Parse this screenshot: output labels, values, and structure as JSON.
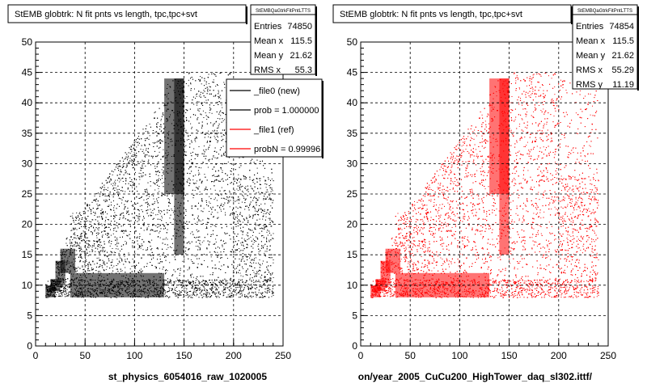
{
  "chart_data": [
    {
      "type": "scatter",
      "panel": "left",
      "title": "StEMB globtrk: N fit pnts vs length, tpc,tpc+svt",
      "xlabel": "st_physics_6054016_raw_1020005",
      "ylabel": "",
      "xlim": [
        0,
        250
      ],
      "ylim": [
        0,
        50
      ],
      "x_ticks": [
        "0",
        "50",
        "100",
        "150",
        "200",
        "250"
      ],
      "y_ticks": [
        "0",
        "5",
        "10",
        "15",
        "20",
        "25",
        "30",
        "35",
        "40",
        "45",
        "50"
      ],
      "grid": true,
      "marker_color": "#000000",
      "stats": {
        "header": "StEMBQaGtrkFitPntLTTS",
        "rows": [
          {
            "label": "Entries",
            "value": "74850"
          },
          {
            "label": "Mean x",
            "value": "115.5"
          },
          {
            "label": "Mean y",
            "value": "21.62"
          },
          {
            "label": "RMS x",
            "value": "55.3"
          }
        ]
      },
      "legend": {
        "placement": "top-right",
        "entries": [
          {
            "label": "_file0 (new)",
            "color": "#000000"
          },
          {
            "label": "prob = 1.000000",
            "color": "#000000"
          },
          {
            "label": "_file1 (ref)",
            "color": "#ff0000"
          },
          {
            "label": "probN = 0.99996",
            "color": "#ff0000"
          }
        ]
      }
    },
    {
      "type": "scatter",
      "panel": "right",
      "title": "StEMB globtrk: N fit pnts vs length, tpc,tpc+svt",
      "xlabel": "on/year_2005_CuCu200_HighTower_daq_sl302.ittf/",
      "ylabel": "",
      "xlim": [
        0,
        250
      ],
      "ylim": [
        0,
        50
      ],
      "x_ticks": [
        "0",
        "50",
        "100",
        "150",
        "200",
        "250"
      ],
      "y_ticks": [
        "0",
        "5",
        "10",
        "15",
        "20",
        "25",
        "30",
        "35",
        "40",
        "45",
        "50"
      ],
      "grid": true,
      "marker_color": "#ff0000",
      "stats": {
        "header": "StEMBQaGtrkFitPntLTTS",
        "rows": [
          {
            "label": "Entries",
            "value": "74854"
          },
          {
            "label": "Mean x",
            "value": "115.5"
          },
          {
            "label": "Mean y",
            "value": "21.62"
          },
          {
            "label": "RMS x",
            "value": "55.29"
          },
          {
            "label": "RMS y",
            "value": "11.19"
          }
        ]
      }
    }
  ]
}
